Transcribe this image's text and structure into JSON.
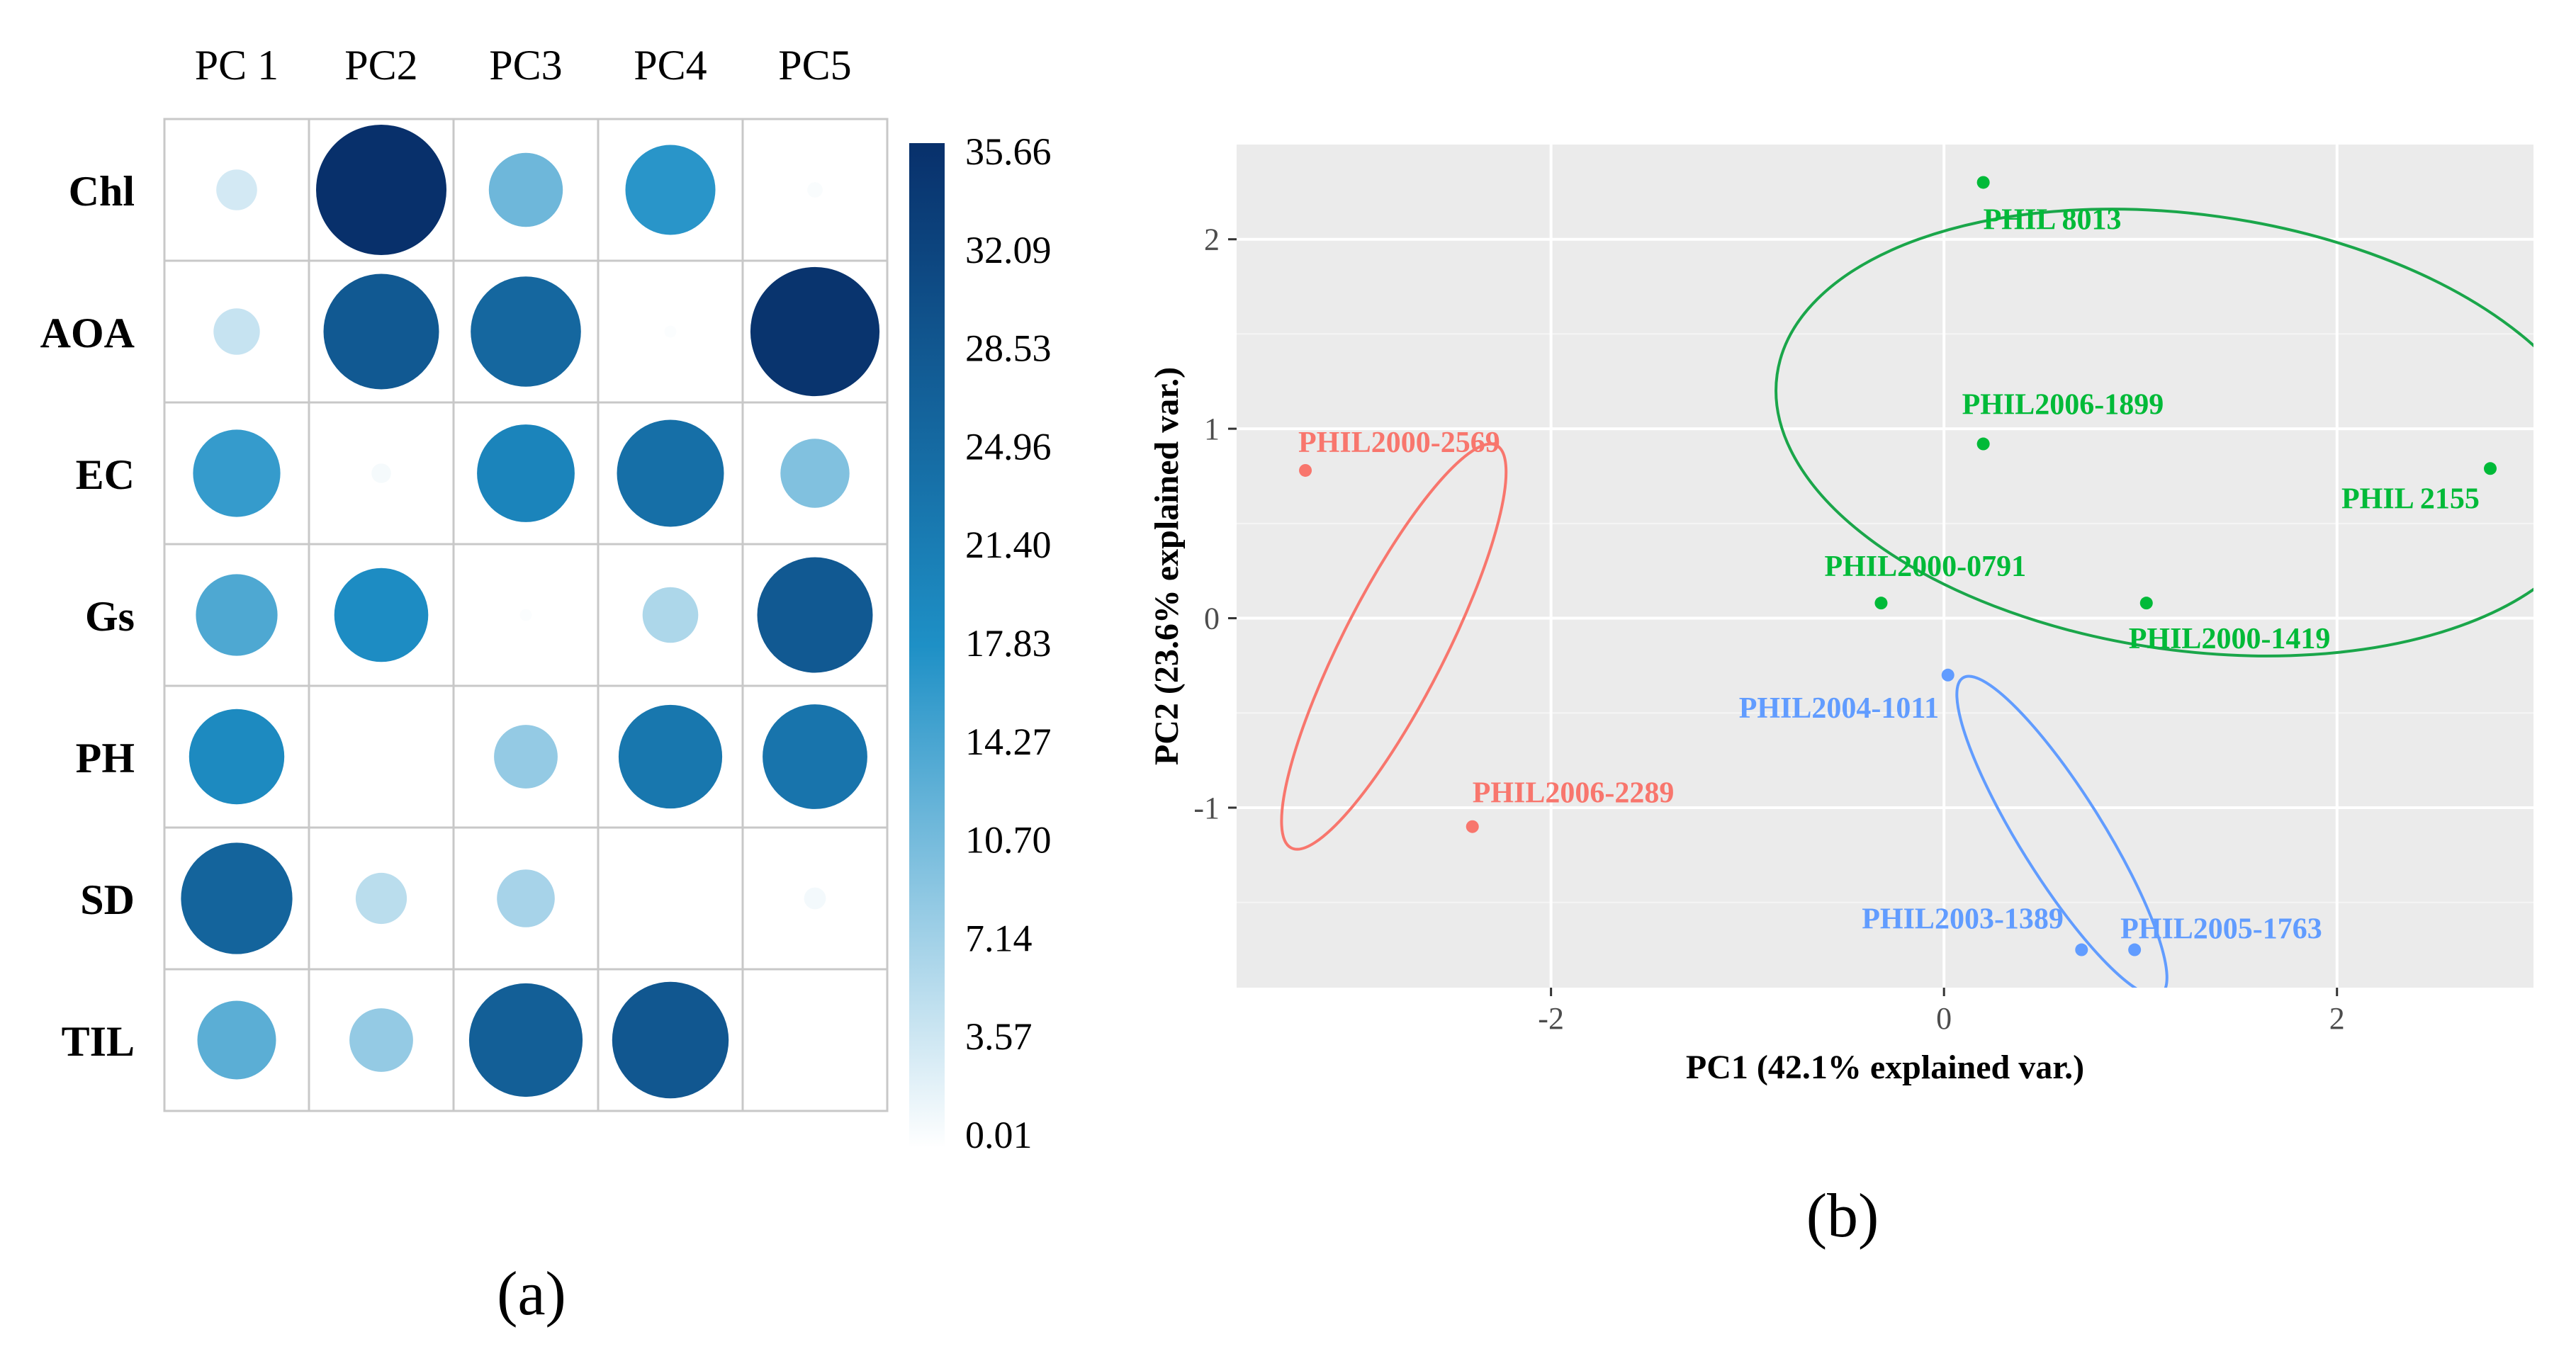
{
  "chart_data": [
    {
      "type": "heatmap",
      "panel_label": "(a)",
      "columns": [
        "PC 1",
        "PC2",
        "PC3",
        "PC4",
        "PC5"
      ],
      "rows": [
        "Chl",
        "AOA",
        "EC",
        "Gs",
        "PH",
        "SD",
        "TIL"
      ],
      "values": [
        [
          3.5,
          35.66,
          11.5,
          17.0,
          0.5
        ],
        [
          4.5,
          28.0,
          25.5,
          0.3,
          35.0
        ],
        [
          16.0,
          0.8,
          20.0,
          24.0,
          10.0
        ],
        [
          14.0,
          18.5,
          0.3,
          6.5,
          28.0
        ],
        [
          19.0,
          0.0,
          8.5,
          22.5,
          23.0
        ],
        [
          26.0,
          5.5,
          7.0,
          0.0,
          1.0
        ],
        [
          13.0,
          8.5,
          27.0,
          28.5,
          0.0
        ]
      ],
      "colorbar": {
        "min": 0.01,
        "max": 35.66,
        "ticks": [
          "35.66",
          "32.09",
          "28.53",
          "24.96",
          "21.40",
          "17.83",
          "14.27",
          "10.70",
          "7.14",
          "3.57",
          "0.01"
        ],
        "color_low": "#ffffff",
        "color_mid": "#1e90c6",
        "color_high": "#08306b"
      }
    },
    {
      "type": "scatter",
      "panel_label": "(b)",
      "xlabel": "PC1 (42.1% explained var.)",
      "ylabel": "PC2 (23.6% explained var.)",
      "xlim": [
        -3.6,
        3.0
      ],
      "ylim": [
        -1.95,
        2.5
      ],
      "xticks": [
        -2,
        0,
        2
      ],
      "yticks": [
        -1,
        0,
        1,
        2
      ],
      "xtick_labels": [
        "-2",
        "0",
        "2"
      ],
      "ytick_labels": [
        "-1",
        "0",
        "1",
        "2"
      ],
      "grid": true,
      "groups": [
        {
          "name": "red",
          "color": "#f8766d",
          "points": [
            {
              "label": "PHIL2000-2569",
              "x": -3.25,
              "y": 0.78
            },
            {
              "label": "PHIL2006-2289",
              "x": -2.4,
              "y": -1.1
            }
          ],
          "ellipse": {
            "cx": -2.8,
            "cy": -0.15,
            "rx": 1.15,
            "ry": 0.27,
            "angle_deg": 63
          }
        },
        {
          "name": "green",
          "color": "#00ba38",
          "points": [
            {
              "label": "PHIL 8013",
              "x": 0.2,
              "y": 2.3
            },
            {
              "label": "PHIL2006-1899",
              "x": 0.2,
              "y": 0.92
            },
            {
              "label": "PHIL 2155",
              "x": 2.78,
              "y": 0.79
            },
            {
              "label": "PHIL2000-0791",
              "x": -0.32,
              "y": 0.08
            },
            {
              "label": "PHIL2000-1419",
              "x": 1.03,
              "y": 0.08
            }
          ],
          "ellipse": {
            "cx": 1.25,
            "cy": 0.98,
            "rx": 2.12,
            "ry": 1.15,
            "angle_deg": -8
          }
        },
        {
          "name": "blue",
          "color": "#619cff",
          "points": [
            {
              "label": "PHIL2004-1011",
              "x": 0.02,
              "y": -0.3
            },
            {
              "label": "PHIL2003-1389",
              "x": 0.7,
              "y": -1.75
            },
            {
              "label": "PHIL2005-1763",
              "x": 0.97,
              "y": -1.75
            }
          ],
          "ellipse": {
            "cx": 0.6,
            "cy": -1.15,
            "rx": 0.95,
            "ry": 0.22,
            "angle_deg": -58
          }
        }
      ]
    }
  ]
}
